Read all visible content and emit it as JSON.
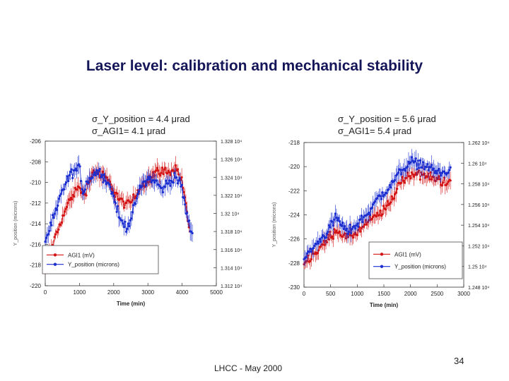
{
  "slide": {
    "title": "Laser level: calibration and mechanical stability",
    "footer": "LHCC - May 2000",
    "page_number": "34",
    "left_sigma": [
      "σ_Y_position = 4.4 μrad",
      "σ_AGI1= 4.1 μrad"
    ],
    "right_sigma": [
      "σ_Y_position = 5.6 μrad",
      "σ_AGI1= 5.4 μrad"
    ]
  },
  "colors": {
    "agi1": "#d41414",
    "y_position": "#1c2fd0",
    "title": "#15155a"
  },
  "chart_data": [
    {
      "type": "line",
      "xlabel": "Time (min)",
      "ylabel": "Y_position (microns)",
      "xlim": [
        0,
        5000
      ],
      "xticks": [
        "0",
        "1000",
        "2000",
        "3000",
        "4000",
        "5000"
      ],
      "ylim": [
        -220,
        -206
      ],
      "yticks": [
        "-220",
        "-218",
        "-216",
        "-214",
        "-212",
        "-210",
        "-208",
        "-206"
      ],
      "y2lim": [
        13120.0,
        13280.0
      ],
      "y2ticks": [
        "1.312 10⁴",
        "1.314 10⁴",
        "1.316 10⁴",
        "1.318 10⁴",
        "1.32 10⁴",
        "1.322 10⁴",
        "1.324 10⁴",
        "1.326 10⁴",
        "1.328 10⁴"
      ],
      "legend_position": "bottom-left",
      "series": [
        {
          "name": "AGI1 (mV)",
          "axis": "right",
          "x": [
            0,
            250,
            500,
            750,
            1000,
            1100,
            1200,
            1400,
            1600,
            1800,
            2000,
            2200,
            2400,
            2600,
            2800,
            3000,
            3200,
            3400,
            3600,
            3800,
            4000,
            4100,
            4200
          ],
          "y": [
            13143,
            13168,
            13195,
            13218,
            13230,
            13221,
            13226,
            13247,
            13243,
            13238,
            13226,
            13214,
            13209,
            13217,
            13231,
            13237,
            13245,
            13248,
            13244,
            13252,
            13235,
            13212,
            13185
          ]
        },
        {
          "name": "Y_position (microns)",
          "axis": "left",
          "x": [
            0,
            250,
            500,
            750,
            1000,
            1100,
            1200,
            1400,
            1600,
            1800,
            2000,
            2200,
            2400,
            2600,
            2800,
            3000,
            3200,
            3400,
            3600,
            3800,
            4000,
            4100,
            4300
          ],
          "y": [
            -215.6,
            -213.5,
            -210.8,
            -209.2,
            -208.5,
            -211.0,
            -210.0,
            -209.2,
            -209.0,
            -209.8,
            -211.4,
            -213.8,
            -214.3,
            -212.5,
            -210.2,
            -209.6,
            -209.8,
            -210.7,
            -210.0,
            -209.4,
            -210.6,
            -212.6,
            -215.2
          ]
        }
      ]
    },
    {
      "type": "line",
      "xlabel": "Time (min)",
      "ylabel": "Y_position (microns)",
      "xlim": [
        0,
        3000
      ],
      "xticks": [
        "0",
        "500",
        "1000",
        "1500",
        "2000",
        "2500",
        "3000"
      ],
      "ylim": [
        -230,
        -218
      ],
      "yticks": [
        "-230",
        "-228",
        "-226",
        "-224",
        "-222",
        "-220",
        "-218"
      ],
      "y2lim": [
        12480.0,
        12620.0
      ],
      "y2ticks": [
        "1.248 10⁴",
        "1.25 10⁴",
        "1.252 10⁴",
        "1.254 10⁴",
        "1.256 10⁴",
        "1.258 10⁴",
        "1.26 10⁴",
        "1.262 10⁴"
      ],
      "legend_position": "bottom-right",
      "series": [
        {
          "name": "AGI1 (mV)",
          "axis": "right",
          "x": [
            0,
            200,
            400,
            600,
            800,
            1000,
            1200,
            1400,
            1600,
            1800,
            2000,
            2200,
            2400,
            2600,
            2750
          ],
          "y": [
            12504,
            12513,
            12523,
            12536,
            12528,
            12533,
            12543,
            12550,
            12560,
            12581,
            12590,
            12589,
            12586,
            12583,
            12580
          ]
        },
        {
          "name": "Y_position (microns)",
          "axis": "left",
          "x": [
            0,
            200,
            400,
            600,
            800,
            1000,
            1200,
            1400,
            1600,
            1800,
            2000,
            2200,
            2400,
            2600,
            2750
          ],
          "y": [
            -227.6,
            -226.6,
            -225.6,
            -224.2,
            -225.4,
            -224.8,
            -223.8,
            -222.6,
            -221.8,
            -220.4,
            -219.6,
            -219.8,
            -220.2,
            -220.6,
            -220.4
          ]
        }
      ]
    }
  ]
}
